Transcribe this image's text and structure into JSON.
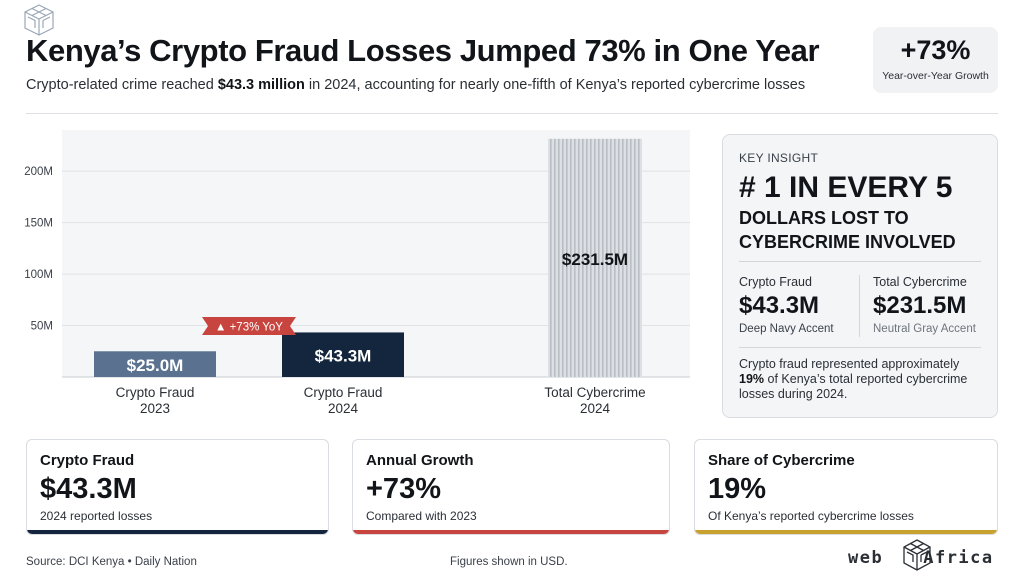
{
  "header": {
    "title": "Kenya’s Crypto Fraud Losses Jumped 73% in One Year",
    "subtitle_pre": "Crypto-related crime reached ",
    "subtitle_bold": "$43.3 million",
    "subtitle_post": " in 2024, accounting for nearly one-fifth of Kenya’s reported cybercrime losses"
  },
  "badge": {
    "value": "+73%",
    "label": "Year-over-Year Growth"
  },
  "chart_data": {
    "type": "bar",
    "categories": [
      [
        "Crypto Fraud",
        "2023"
      ],
      [
        "Crypto Fraud",
        "2024"
      ],
      [
        "Total Cybercrime",
        "2024"
      ]
    ],
    "values": [
      25.0,
      43.3,
      231.5
    ],
    "value_labels": [
      "$25.0M",
      "$43.3M",
      "$231.5M"
    ],
    "y_ticks": [
      50,
      100,
      150,
      200
    ],
    "y_tick_labels": [
      "50M",
      "100M",
      "150M",
      "200M"
    ],
    "ylim": [
      0,
      240
    ],
    "grid": true,
    "annotation": "▲ +73% YoY",
    "colors": [
      "#5a7290",
      "#14263d",
      "#c7cbd0"
    ]
  },
  "insight": {
    "kicker": "KEY INSIGHT",
    "headline": "# 1 IN EVERY 5",
    "subhead": "DOLLARS LOST TO CYBERCRIME INVOLVED",
    "left": {
      "label": "Crypto Fraud",
      "value": "$43.3M",
      "note": "Deep Navy Accent"
    },
    "right": {
      "label": "Total Cybercrime",
      "value": "$231.5M",
      "note": "Neutral Gray Accent"
    },
    "text_pre": "Crypto fraud represented approximately ",
    "text_bold": "19%",
    "text_post": " of Kenya’s total reported cybercrime losses during 2024."
  },
  "cards": [
    {
      "label": "Crypto Fraud",
      "value": "$43.3M",
      "note": "2024 reported losses",
      "accent": "#14263d"
    },
    {
      "label": "Annual Growth",
      "value": "+73%",
      "note": "Compared with 2023",
      "accent": "#c8453f"
    },
    {
      "label": "Share of Cybercrime",
      "value": "19%",
      "note": "Of Kenya’s reported cybercrime losses",
      "accent": "#c9a12f"
    }
  ],
  "footer": {
    "source": "Source: DCI Kenya • Daily Nation",
    "note": "Figures shown in USD.",
    "brand_left": "web",
    "brand_right": "Africa"
  }
}
